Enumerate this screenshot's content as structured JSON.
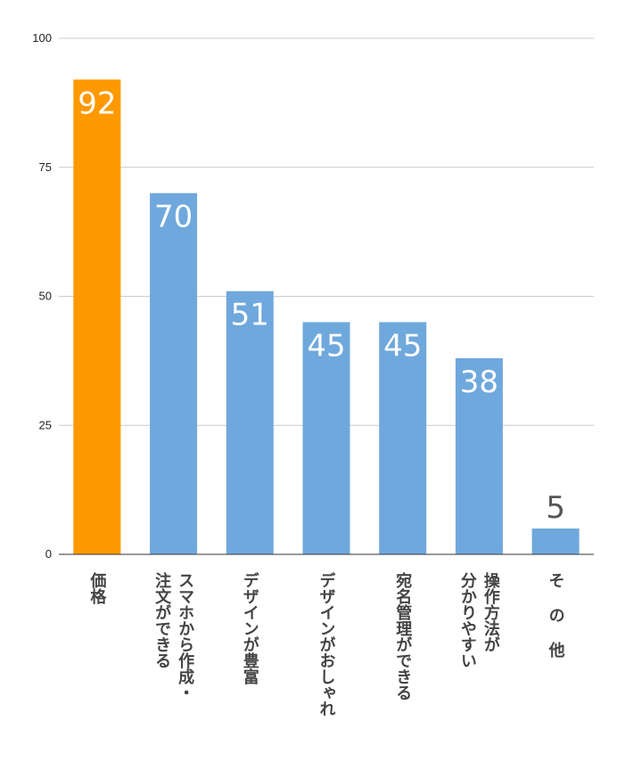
{
  "chart_data": {
    "type": "bar",
    "title": "",
    "xlabel": "",
    "ylabel": "",
    "ylim": [
      0,
      100
    ],
    "yticks": [
      0,
      25,
      50,
      75,
      100
    ],
    "grid": true,
    "legend": "none",
    "categories": [
      "価格",
      "スマホから作成・注文ができる",
      "デザインが豊富",
      "デザインがおしゃれ",
      "宛名管理ができる",
      "操作方法が分かりやすい",
      "その他"
    ],
    "category_lines": [
      [
        "価格"
      ],
      [
        "スマホから作成・",
        "注文ができる"
      ],
      [
        "デザインが豊富"
      ],
      [
        "デザインがおしゃれ"
      ],
      [
        "宛名管理ができる"
      ],
      [
        "操作方法が",
        "分かりやすい"
      ],
      [
        "そ の 他"
      ]
    ],
    "values": [
      92,
      70,
      51,
      45,
      45,
      38,
      5
    ],
    "bar_colors": [
      "#ff9900",
      "#6fa8dc",
      "#6fa8dc",
      "#6fa8dc",
      "#6fa8dc",
      "#6fa8dc",
      "#6fa8dc"
    ]
  }
}
